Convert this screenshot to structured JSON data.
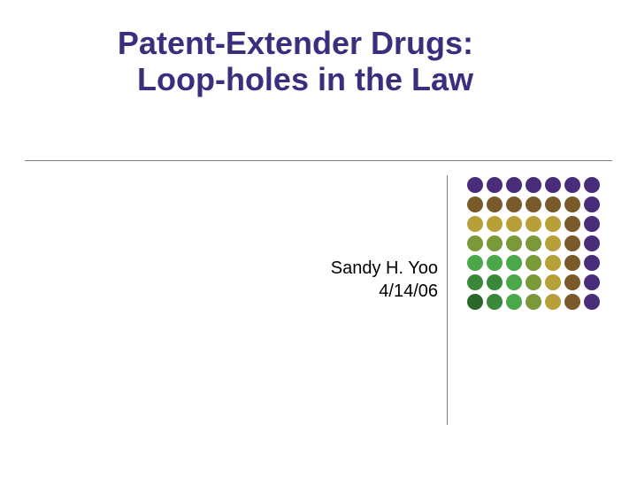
{
  "slide": {
    "title": "Patent-Extender Drugs: Loop-holes in the Law",
    "title_color": "#3b2e7e",
    "title_fontsize": 36,
    "author": "Sandy H. Yoo",
    "date": "4/14/06",
    "byline_fontsize": 20,
    "byline_color": "#000000",
    "background": "#ffffff",
    "divider_color": "#808080"
  },
  "dot_grid": {
    "rows": 7,
    "cols": 7,
    "dot_size": 18,
    "gap": 4,
    "colors": [
      "#4a2d7a",
      "#4a2d7a",
      "#4a2d7a",
      "#4a2d7a",
      "#4a2d7a",
      "#4a2d7a",
      "#4a2d7a",
      "#7a5a2a",
      "#7a5a2a",
      "#7a5a2a",
      "#7a5a2a",
      "#7a5a2a",
      "#7a5a2a",
      "#4a2d7a",
      "#b8a038",
      "#b8a038",
      "#b8a038",
      "#b8a038",
      "#b8a038",
      "#7a5a2a",
      "#4a2d7a",
      "#7a9a3a",
      "#7a9a3a",
      "#7a9a3a",
      "#7a9a3a",
      "#b8a038",
      "#7a5a2a",
      "#4a2d7a",
      "#4aa84a",
      "#4aa84a",
      "#4aa84a",
      "#7a9a3a",
      "#b8a038",
      "#7a5a2a",
      "#4a2d7a",
      "#3a883a",
      "#3a883a",
      "#4aa84a",
      "#7a9a3a",
      "#b8a038",
      "#7a5a2a",
      "#4a2d7a",
      "#2a682a",
      "#3a883a",
      "#4aa84a",
      "#7a9a3a",
      "#b8a038",
      "#7a5a2a",
      "#4a2d7a"
    ]
  }
}
